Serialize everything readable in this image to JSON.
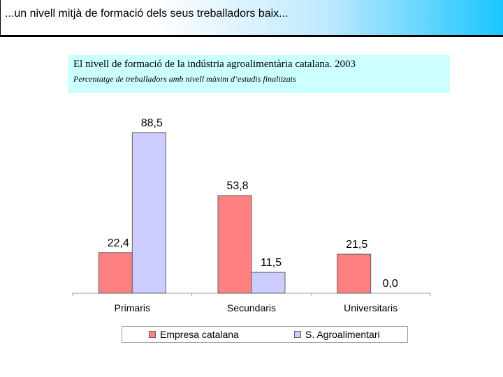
{
  "header": {
    "title": "...un nivell mitjà de formació dels seus treballadors baix..."
  },
  "chart_data": {
    "type": "bar",
    "title": "El nivell de  formació de la indústria agroalimentària catalana. 2003",
    "subtitle": "Percentatge de treballadors amb nivell màxim d’estudis finalitzats",
    "categories": [
      "Primaris",
      "Secundaris",
      "Universitaris"
    ],
    "series": [
      {
        "name": "Empresa catalana",
        "values": [
          22.4,
          53.8,
          21.5
        ],
        "labels": [
          "22,4",
          "53,8",
          "21,5"
        ],
        "color": "#ff8080"
      },
      {
        "name": "S. Agroalimentari",
        "values": [
          88.5,
          11.5,
          0.0
        ],
        "labels": [
          "88,5",
          "11,5",
          "0,0"
        ],
        "color": "#ccccff"
      }
    ],
    "ylim": [
      0,
      100
    ],
    "grid": false,
    "legend_position": "bottom"
  }
}
